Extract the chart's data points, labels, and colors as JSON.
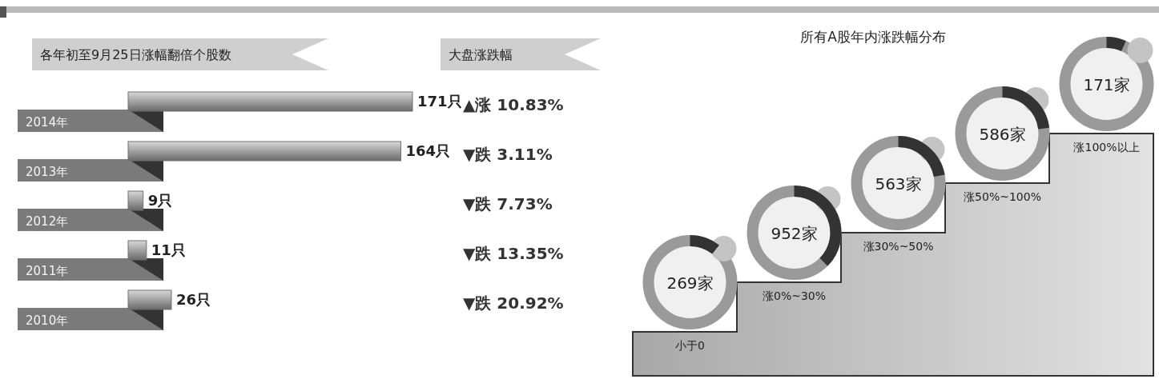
{
  "chart_data": [
    {
      "type": "bar",
      "orientation": "horizontal",
      "title": "各年初至9月25日涨幅翻倍个股数",
      "categories": [
        "2014年",
        "2013年",
        "2012年",
        "2011年",
        "2010年"
      ],
      "values": [
        171,
        164,
        9,
        11,
        26
      ],
      "value_labels": [
        "171只",
        "164只",
        "9只",
        "11只",
        "26只"
      ],
      "color": "#707070"
    },
    {
      "type": "other",
      "title": "大盘涨跌幅",
      "annotations": [
        "▲涨 10.83%",
        "▼跌 3.11%",
        "▼跌 7.73%",
        "▼跌 13.35%",
        "▼跌 20.92%"
      ]
    },
    {
      "type": "other",
      "title": "所有A股年内涨跌幅分布",
      "categories": [
        "小于0",
        "涨0%~30%",
        "涨30%~50%",
        "涨50%~100%",
        "涨100%以上"
      ],
      "values": [
        269,
        952,
        563,
        586,
        171
      ],
      "value_labels": [
        "269家",
        "952家",
        "563家",
        "586家",
        "171家"
      ]
    }
  ]
}
